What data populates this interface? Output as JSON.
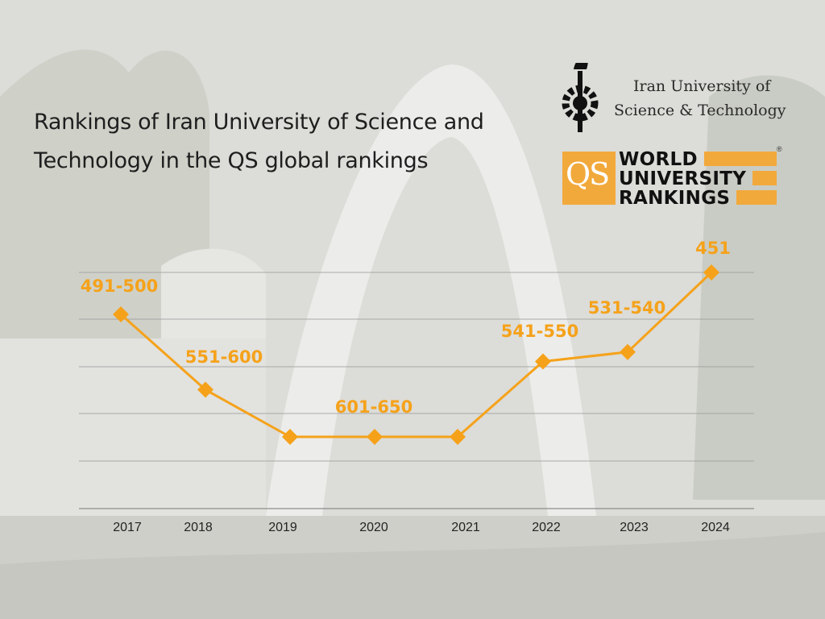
{
  "title_lines": [
    "Rankings of Iran University of Science and",
    "Technology in the QS global rankings"
  ],
  "logo_iust": {
    "line1": "Iran University of",
    "line2": "Science & Technology",
    "icon": "iust-torch-gear-icon"
  },
  "logo_qs": {
    "letters": "QS",
    "line1": "WORLD",
    "line2": "UNIVERSITY",
    "line3": "RANKINGS",
    "registered": "®"
  },
  "colors": {
    "accent": "#f5a21a",
    "grid": "#9a9a9a",
    "text": "#1e1e1e"
  },
  "chart_data": {
    "type": "line",
    "categories": [
      "2017",
      "2018",
      "2019",
      "2020",
      "2021",
      "2022",
      "2023",
      "2024"
    ],
    "series": [
      {
        "values": [
          495.5,
          575.5,
          625.5,
          625.5,
          625.5,
          545.5,
          535.5,
          451
        ]
      }
    ],
    "data_labels": [
      "491-500",
      "551-600",
      "",
      "601-650",
      "",
      "541-550",
      "531-540",
      "451"
    ],
    "grid": true,
    "y_axis_inverted": true
  }
}
